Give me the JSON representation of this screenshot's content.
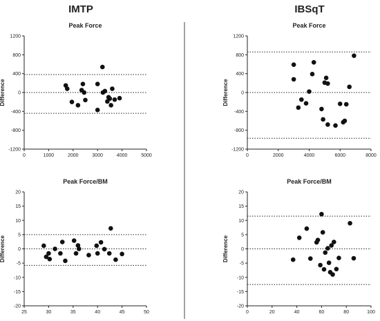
{
  "column_titles": {
    "left": "IMTP",
    "right": "IBSqT"
  },
  "chart_data": [
    {
      "id": "imtp-pf",
      "type": "scatter",
      "title": "Peak Force",
      "xlabel": "",
      "ylabel": "Difference",
      "xlim": [
        0,
        5000
      ],
      "ylim": [
        -1200,
        1200
      ],
      "xticks": [
        0,
        1000,
        2000,
        3000,
        4000,
        5000
      ],
      "yticks": [
        -1200,
        -800,
        -400,
        0,
        400,
        800,
        1200
      ],
      "mean_line": 0,
      "limits_of_agreement": [
        380,
        -440
      ],
      "points": [
        [
          1700,
          150
        ],
        [
          1760,
          80
        ],
        [
          1950,
          -200
        ],
        [
          2200,
          -270
        ],
        [
          2350,
          50
        ],
        [
          2400,
          180
        ],
        [
          2450,
          0
        ],
        [
          2500,
          -160
        ],
        [
          3000,
          180
        ],
        [
          3000,
          -370
        ],
        [
          3200,
          540
        ],
        [
          3220,
          0
        ],
        [
          3300,
          30
        ],
        [
          3400,
          -190
        ],
        [
          3450,
          -100
        ],
        [
          3500,
          -130
        ],
        [
          3550,
          -270
        ],
        [
          3600,
          80
        ],
        [
          3700,
          -150
        ],
        [
          3900,
          -120
        ]
      ]
    },
    {
      "id": "ibsqt-pf",
      "type": "scatter",
      "title": "Peak Force",
      "xlabel": "",
      "ylabel": "Difference",
      "xlim": [
        0,
        8000
      ],
      "ylim": [
        -1200,
        1200
      ],
      "xticks": [
        0,
        2000,
        4000,
        6000,
        8000
      ],
      "yticks": [
        -1200,
        -800,
        -400,
        0,
        400,
        800,
        1200
      ],
      "mean_line": 0,
      "limits_of_agreement": [
        860,
        -970
      ],
      "points": [
        [
          3000,
          590
        ],
        [
          3000,
          280
        ],
        [
          3300,
          -320
        ],
        [
          3500,
          -150
        ],
        [
          3800,
          -230
        ],
        [
          4000,
          20
        ],
        [
          4200,
          390
        ],
        [
          4300,
          640
        ],
        [
          4800,
          -350
        ],
        [
          4900,
          -570
        ],
        [
          5000,
          210
        ],
        [
          5100,
          310
        ],
        [
          5200,
          -680
        ],
        [
          5200,
          190
        ],
        [
          5700,
          -700
        ],
        [
          6000,
          -240
        ],
        [
          6200,
          -630
        ],
        [
          6300,
          -600
        ],
        [
          6400,
          -250
        ],
        [
          6600,
          120
        ],
        [
          6900,
          780
        ]
      ]
    },
    {
      "id": "imtp-pfbm",
      "type": "scatter",
      "title": "Peak Force/BM",
      "xlabel": "",
      "ylabel": "Difference",
      "xlim": [
        25,
        50
      ],
      "ylim": [
        -20,
        20
      ],
      "xticks": [
        25,
        30,
        35,
        40,
        45,
        50
      ],
      "yticks": [
        -20,
        -15,
        -10,
        -5,
        0,
        5,
        10,
        15,
        20
      ],
      "mean_line": 0,
      "limits_of_agreement": [
        5,
        -5.8
      ],
      "points": [
        [
          29,
          1.1
        ],
        [
          29.5,
          -2.8
        ],
        [
          30,
          -1.6
        ],
        [
          30.2,
          -3.6
        ],
        [
          31.3,
          0
        ],
        [
          32.4,
          -1.6
        ],
        [
          32.8,
          2.4
        ],
        [
          33.4,
          -4.2
        ],
        [
          35.2,
          2.9
        ],
        [
          35.6,
          -1.6
        ],
        [
          36,
          1.2
        ],
        [
          36.2,
          0
        ],
        [
          38.2,
          -2.2
        ],
        [
          39.8,
          1.1
        ],
        [
          40,
          -1.6
        ],
        [
          40.7,
          2.3
        ],
        [
          41.4,
          -0.1
        ],
        [
          42.4,
          -1.6
        ],
        [
          42.7,
          7.2
        ],
        [
          43.7,
          -3.8
        ],
        [
          45,
          -1.8
        ]
      ]
    },
    {
      "id": "ibsqt-pfbm",
      "type": "scatter",
      "title": "Peak Force/BM",
      "xlabel": "",
      "ylabel": "Difference",
      "xlim": [
        0,
        100
      ],
      "ylim": [
        -20,
        20
      ],
      "xticks": [
        0,
        20,
        40,
        60,
        80,
        100
      ],
      "yticks": [
        -20,
        -15,
        -10,
        -5,
        0,
        5,
        10,
        15,
        20
      ],
      "mean_line": 0,
      "limits_of_agreement": [
        11.5,
        -12.5
      ],
      "points": [
        [
          37,
          -3.8
        ],
        [
          42,
          3.9
        ],
        [
          48,
          7.1
        ],
        [
          51,
          -3.4
        ],
        [
          56,
          2.3
        ],
        [
          57,
          3.1
        ],
        [
          59,
          -5.7
        ],
        [
          60,
          12.2
        ],
        [
          61,
          5.8
        ],
        [
          62,
          -7.2
        ],
        [
          63,
          -1.3
        ],
        [
          65,
          0.2
        ],
        [
          66,
          -4.9
        ],
        [
          67,
          -8.2
        ],
        [
          68,
          1.2
        ],
        [
          69,
          -9
        ],
        [
          70,
          2.4
        ],
        [
          72,
          -7.1
        ],
        [
          74,
          -3.2
        ],
        [
          83,
          9
        ],
        [
          86,
          -3.3
        ]
      ]
    }
  ]
}
